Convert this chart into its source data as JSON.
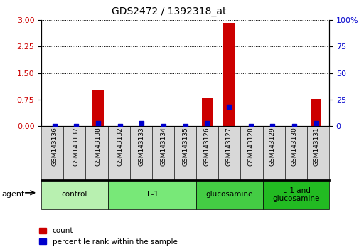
{
  "title": "GDS2472 / 1392318_at",
  "samples": [
    "GSM143136",
    "GSM143137",
    "GSM143138",
    "GSM143132",
    "GSM143133",
    "GSM143134",
    "GSM143135",
    "GSM143126",
    "GSM143127",
    "GSM143128",
    "GSM143129",
    "GSM143130",
    "GSM143131"
  ],
  "count_values": [
    0,
    0,
    1.02,
    0,
    0,
    0,
    0,
    0.8,
    2.9,
    0,
    0,
    0,
    0.76
  ],
  "percentile_values": [
    0,
    0,
    3.0,
    0,
    2.5,
    0,
    0,
    2.5,
    18.0,
    0,
    0,
    0,
    2.5
  ],
  "ylim_left": [
    0,
    3
  ],
  "ylim_right": [
    0,
    100
  ],
  "yticks_left": [
    0,
    0.75,
    1.5,
    2.25,
    3
  ],
  "yticks_right": [
    0,
    25,
    50,
    75,
    100
  ],
  "groups": [
    {
      "label": "control",
      "indices": [
        0,
        1,
        2
      ],
      "color": "#b8f0b0"
    },
    {
      "label": "IL-1",
      "indices": [
        3,
        4,
        5,
        6
      ],
      "color": "#78e878"
    },
    {
      "label": "glucosamine",
      "indices": [
        7,
        8,
        9
      ],
      "color": "#44cc44"
    },
    {
      "label": "IL-1 and\nglucosamine",
      "indices": [
        10,
        11,
        12
      ],
      "color": "#22bb22"
    }
  ],
  "bar_color": "#CC0000",
  "dot_color": "#0000CC",
  "bar_width": 0.5,
  "dot_size": 20,
  "background_fig": "#FFFFFF",
  "tick_label_color_left": "#CC0000",
  "tick_label_color_right": "#0000CC",
  "agent_label": "agent",
  "legend_count": "count",
  "legend_percentile": "percentile rank within the sample"
}
